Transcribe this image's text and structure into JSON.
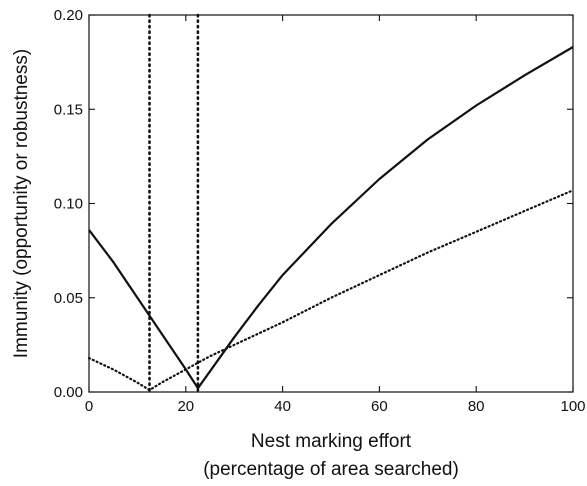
{
  "chart_data": {
    "type": "line",
    "xlabel_lines": [
      "Nest marking effort",
      "(percentage of area searched)"
    ],
    "ylabel": "Immunity (opportunity or robustness)",
    "xlim": [
      0,
      100
    ],
    "ylim": [
      0,
      0.2
    ],
    "x_ticks": [
      0,
      20,
      40,
      60,
      80,
      100
    ],
    "x_tick_labels": [
      "0",
      "20",
      "40",
      "60",
      "80",
      "100"
    ],
    "y_ticks": [
      0,
      0.05,
      0.1,
      0.15,
      0.2
    ],
    "y_tick_labels": [
      "0.00",
      "0.05",
      "0.10",
      "0.15",
      "0.20"
    ],
    "grid": false,
    "legend": "none",
    "series": [
      {
        "style": "solid",
        "color": "#111111",
        "x": [
          0,
          5,
          10,
          15,
          20,
          22.5,
          25,
          30,
          35,
          40,
          50,
          60,
          70,
          80,
          90,
          100
        ],
        "y": [
          0.086,
          0.069,
          0.05,
          0.031,
          0.012,
          0.002,
          0.011,
          0.029,
          0.046,
          0.062,
          0.089,
          0.113,
          0.134,
          0.152,
          0.168,
          0.183
        ]
      },
      {
        "style": "dotted",
        "color": "#111111",
        "x": [
          0,
          5,
          10,
          12.5,
          15,
          20,
          25,
          30,
          40,
          50,
          60,
          70,
          80,
          90,
          100
        ],
        "y": [
          0.018,
          0.012,
          0.005,
          0.001,
          0.005,
          0.012,
          0.019,
          0.025,
          0.037,
          0.05,
          0.062,
          0.074,
          0.085,
          0.096,
          0.107
        ]
      }
    ],
    "vertical_markers": [
      {
        "x": 12.5,
        "style": "dotted"
      },
      {
        "x": 22.5,
        "style": "dotted"
      }
    ]
  }
}
